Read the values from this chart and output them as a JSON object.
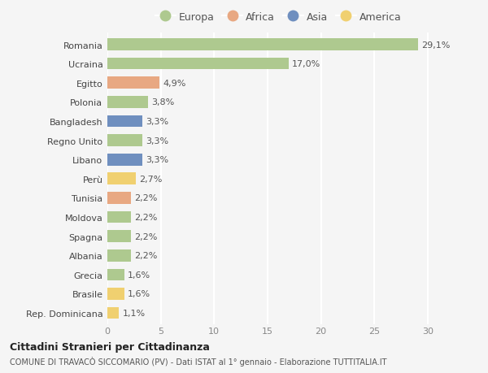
{
  "countries": [
    "Romania",
    "Ucraina",
    "Egitto",
    "Polonia",
    "Bangladesh",
    "Regno Unito",
    "Libano",
    "Perù",
    "Tunisia",
    "Moldova",
    "Spagna",
    "Albania",
    "Grecia",
    "Brasile",
    "Rep. Dominicana"
  ],
  "values": [
    29.1,
    17.0,
    4.9,
    3.8,
    3.3,
    3.3,
    3.3,
    2.7,
    2.2,
    2.2,
    2.2,
    2.2,
    1.6,
    1.6,
    1.1
  ],
  "labels": [
    "29,1%",
    "17,0%",
    "4,9%",
    "3,8%",
    "3,3%",
    "3,3%",
    "3,3%",
    "2,7%",
    "2,2%",
    "2,2%",
    "2,2%",
    "2,2%",
    "1,6%",
    "1,6%",
    "1,1%"
  ],
  "continents": [
    "Europa",
    "Europa",
    "Africa",
    "Europa",
    "Asia",
    "Europa",
    "Asia",
    "America",
    "Africa",
    "Europa",
    "Europa",
    "Europa",
    "Europa",
    "America",
    "America"
  ],
  "continent_colors": {
    "Europa": "#aec98f",
    "Africa": "#e8a882",
    "Asia": "#6f8fbf",
    "America": "#f0d070"
  },
  "legend_order": [
    "Europa",
    "Africa",
    "Asia",
    "America"
  ],
  "title": "Cittadini Stranieri per Cittadinanza",
  "subtitle": "COMUNE DI TRAVACÒ SICCOMARIO (PV) - Dati ISTAT al 1° gennaio - Elaborazione TUTTITALIA.IT",
  "xlim": [
    0,
    32
  ],
  "xticks": [
    0,
    5,
    10,
    15,
    20,
    25,
    30
  ],
  "background_color": "#f5f5f5",
  "bar_height": 0.62,
  "grid_color": "#ffffff",
  "label_fontsize": 8,
  "tick_fontsize": 8
}
